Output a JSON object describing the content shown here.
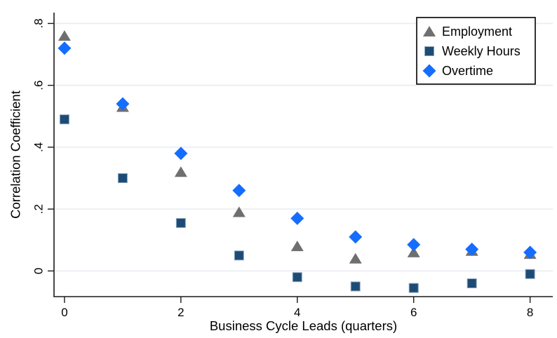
{
  "figure": {
    "background": "#ffffff"
  },
  "chart_data": {
    "type": "scatter",
    "title": "",
    "xlabel": "Business Cycle Leads (quarters)",
    "ylabel": "Correlation Coefficient",
    "x": [
      0,
      1,
      2,
      3,
      4,
      5,
      6,
      7,
      8
    ],
    "xticks": [
      0,
      2,
      4,
      6,
      8
    ],
    "xtick_labels": [
      "0",
      "2",
      "4",
      "6",
      "8"
    ],
    "yticks": [
      0,
      0.2,
      0.4,
      0.6,
      0.8
    ],
    "ytick_labels": [
      "0",
      ".2",
      ".4",
      ".6",
      ".8"
    ],
    "xlim": [
      -0.18,
      8.39
    ],
    "ylim": [
      -0.083,
      0.835
    ],
    "grid": "horizontal",
    "grid_color": "#e8eff4",
    "axis_color": "#1a1a1a",
    "legend_position": "top-right",
    "legend_border_color": "#000000",
    "series": [
      {
        "name": "Employment",
        "marker": "triangle",
        "color": "#6f6f6f",
        "values": [
          0.76,
          0.53,
          0.32,
          0.19,
          0.08,
          0.04,
          0.06,
          0.065,
          0.055
        ]
      },
      {
        "name": "Weekly Hours",
        "marker": "square",
        "color": "#1d4b75",
        "edge_color": "#8aa6c0",
        "values": [
          0.49,
          0.3,
          0.155,
          0.05,
          -0.02,
          -0.05,
          -0.055,
          -0.04,
          -0.01
        ]
      },
      {
        "name": "Overtime",
        "marker": "diamond",
        "color": "#156dff",
        "values": [
          0.72,
          0.54,
          0.38,
          0.26,
          0.17,
          0.11,
          0.085,
          0.07,
          0.06
        ]
      }
    ]
  }
}
